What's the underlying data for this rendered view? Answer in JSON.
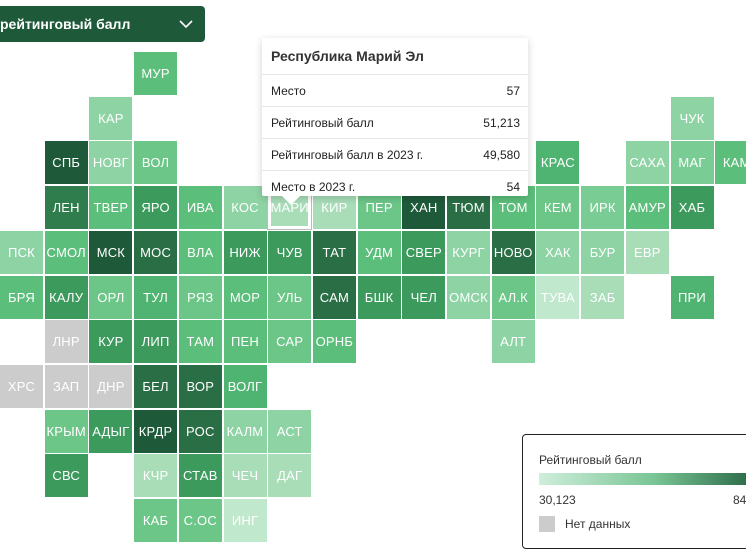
{
  "dropdown": {
    "label": "рейтинговый балл"
  },
  "tooltip": {
    "title": "Республика Марий Эл",
    "rows": [
      {
        "label": "Место",
        "value": "57"
      },
      {
        "label": "Рейтинговый балл",
        "value": "51,213"
      },
      {
        "label": "Рейтинговый балл в 2023 г.",
        "value": "49,580"
      },
      {
        "label": "Место в 2023 г.",
        "value": "54"
      }
    ]
  },
  "legend": {
    "title": "Рейтинговый балл",
    "min": "30,123",
    "max": "84",
    "no_data": "Нет данных",
    "colors": [
      "#cfeedb",
      "#79c595",
      "#1e5a3a"
    ]
  },
  "colors": {
    "no_data": "#cccccc",
    "accent": "#1e5a3a"
  },
  "regions": [
    {
      "label": "МУР",
      "col": 3,
      "row": 0,
      "color": "#5cbe7b"
    },
    {
      "label": "КАР",
      "col": 2,
      "row": 1,
      "color": "#8dd3a4"
    },
    {
      "label": "ЧУК",
      "col": 15,
      "row": 1,
      "color": "#8dd3a4"
    },
    {
      "label": "СПБ",
      "col": 1,
      "row": 2,
      "color": "#1e5a3a"
    },
    {
      "label": "НОВГ",
      "col": 2,
      "row": 2,
      "color": "#8dd3a4"
    },
    {
      "label": "ВОЛ",
      "col": 3,
      "row": 2,
      "color": "#6cc688"
    },
    {
      "label": "КРАС",
      "col": 12,
      "row": 2,
      "color": "#4fb471"
    },
    {
      "label": "САХА",
      "col": 14,
      "row": 2,
      "color": "#8dd3a4"
    },
    {
      "label": "МАГ",
      "col": 15,
      "row": 2,
      "color": "#79cc93"
    },
    {
      "label": "КАМ",
      "col": 16,
      "row": 2,
      "color": "#5cbe7b"
    },
    {
      "label": "ЛЕН",
      "col": 1,
      "row": 3,
      "color": "#2f7d4d"
    },
    {
      "label": "ТВЕР",
      "col": 2,
      "row": 3,
      "color": "#5cbe7b"
    },
    {
      "label": "ЯРО",
      "col": 3,
      "row": 3,
      "color": "#3c9a5d"
    },
    {
      "label": "ИВА",
      "col": 4,
      "row": 3,
      "color": "#5cbe7b"
    },
    {
      "label": "КОС",
      "col": 5,
      "row": 3,
      "color": "#8dd3a4"
    },
    {
      "label": "МАРИ",
      "col": 6,
      "row": 3,
      "color": "#a8ddb8",
      "selected": true
    },
    {
      "label": "КИР",
      "col": 7,
      "row": 3,
      "color": "#a8ddb8"
    },
    {
      "label": "ПЕР",
      "col": 8,
      "row": 3,
      "color": "#6cc688"
    },
    {
      "label": "ХАН",
      "col": 9,
      "row": 3,
      "color": "#1e5a3a"
    },
    {
      "label": "ТЮМ",
      "col": 10,
      "row": 3,
      "color": "#2a6e45"
    },
    {
      "label": "ТОМ",
      "col": 11,
      "row": 3,
      "color": "#5cbe7b"
    },
    {
      "label": "КЕМ",
      "col": 12,
      "row": 3,
      "color": "#6cc688"
    },
    {
      "label": "ИРК",
      "col": 13,
      "row": 3,
      "color": "#79cc93"
    },
    {
      "label": "АМУР",
      "col": 14,
      "row": 3,
      "color": "#5cbe7b"
    },
    {
      "label": "ХАБ",
      "col": 15,
      "row": 3,
      "color": "#3c9a5d"
    },
    {
      "label": "ПСК",
      "col": 0,
      "row": 4,
      "color": "#8dd3a4"
    },
    {
      "label": "СМОЛ",
      "col": 1,
      "row": 4,
      "color": "#5cbe7b"
    },
    {
      "label": "МСК",
      "col": 2,
      "row": 4,
      "color": "#1e5a3a"
    },
    {
      "label": "МОС",
      "col": 3,
      "row": 4,
      "color": "#2a6e45"
    },
    {
      "label": "ВЛА",
      "col": 4,
      "row": 4,
      "color": "#5cbe7b"
    },
    {
      "label": "НИЖ",
      "col": 5,
      "row": 4,
      "color": "#3c9a5d"
    },
    {
      "label": "ЧУВ",
      "col": 6,
      "row": 4,
      "color": "#3c9a5d"
    },
    {
      "label": "ТАТ",
      "col": 7,
      "row": 4,
      "color": "#2a6e45"
    },
    {
      "label": "УДМ",
      "col": 8,
      "row": 4,
      "color": "#5cbe7b"
    },
    {
      "label": "СВЕР",
      "col": 9,
      "row": 4,
      "color": "#3c9a5d"
    },
    {
      "label": "КУРГ",
      "col": 10,
      "row": 4,
      "color": "#8dd3a4"
    },
    {
      "label": "НОВО",
      "col": 11,
      "row": 4,
      "color": "#2a6e45"
    },
    {
      "label": "ХАК",
      "col": 12,
      "row": 4,
      "color": "#8dd3a4"
    },
    {
      "label": "БУР",
      "col": 13,
      "row": 4,
      "color": "#8dd3a4"
    },
    {
      "label": "ЕВР",
      "col": 14,
      "row": 4,
      "color": "#a8ddb8"
    },
    {
      "label": "БРЯ",
      "col": 0,
      "row": 5,
      "color": "#5cbe7b"
    },
    {
      "label": "КАЛУ",
      "col": 1,
      "row": 5,
      "color": "#3c9a5d"
    },
    {
      "label": "ОРЛ",
      "col": 2,
      "row": 5,
      "color": "#6cc688"
    },
    {
      "label": "ТУЛ",
      "col": 3,
      "row": 5,
      "color": "#4fb471"
    },
    {
      "label": "РЯЗ",
      "col": 4,
      "row": 5,
      "color": "#6cc688"
    },
    {
      "label": "МОР",
      "col": 5,
      "row": 5,
      "color": "#5cbe7b"
    },
    {
      "label": "УЛЬ",
      "col": 6,
      "row": 5,
      "color": "#6cc688"
    },
    {
      "label": "САМ",
      "col": 7,
      "row": 5,
      "color": "#2a6e45"
    },
    {
      "label": "БШК",
      "col": 8,
      "row": 5,
      "color": "#3c9a5d"
    },
    {
      "label": "ЧЕЛ",
      "col": 9,
      "row": 5,
      "color": "#3c9a5d"
    },
    {
      "label": "ОМСК",
      "col": 10,
      "row": 5,
      "color": "#8dd3a4"
    },
    {
      "label": "АЛ.К",
      "col": 11,
      "row": 5,
      "color": "#6cc688"
    },
    {
      "label": "ТУВА",
      "col": 12,
      "row": 5,
      "color": "#c0e8cd"
    },
    {
      "label": "ЗАБ",
      "col": 13,
      "row": 5,
      "color": "#a8ddb8"
    },
    {
      "label": "ПРИ",
      "col": 15,
      "row": 5,
      "color": "#4fb471"
    },
    {
      "label": "ЛНР",
      "col": 1,
      "row": 6,
      "color": "#cccccc"
    },
    {
      "label": "КУР",
      "col": 2,
      "row": 6,
      "color": "#3c9a5d"
    },
    {
      "label": "ЛИП",
      "col": 3,
      "row": 6,
      "color": "#3c9a5d"
    },
    {
      "label": "ТАМ",
      "col": 4,
      "row": 6,
      "color": "#5cbe7b"
    },
    {
      "label": "ПЕН",
      "col": 5,
      "row": 6,
      "color": "#5cbe7b"
    },
    {
      "label": "САР",
      "col": 6,
      "row": 6,
      "color": "#6cc688"
    },
    {
      "label": "ОРНБ",
      "col": 7,
      "row": 6,
      "color": "#5cbe7b"
    },
    {
      "label": "АЛТ",
      "col": 11,
      "row": 6,
      "color": "#8dd3a4"
    },
    {
      "label": "ХРС",
      "col": 0,
      "row": 7,
      "color": "#cccccc"
    },
    {
      "label": "ЗАП",
      "col": 1,
      "row": 7,
      "color": "#cccccc"
    },
    {
      "label": "ДНР",
      "col": 2,
      "row": 7,
      "color": "#cccccc"
    },
    {
      "label": "БЕЛ",
      "col": 3,
      "row": 7,
      "color": "#2a6e45"
    },
    {
      "label": "ВОР",
      "col": 4,
      "row": 7,
      "color": "#2a6e45"
    },
    {
      "label": "ВОЛГ",
      "col": 5,
      "row": 7,
      "color": "#4fb471"
    },
    {
      "label": "КРЫМ",
      "col": 1,
      "row": 8,
      "color": "#6cc688"
    },
    {
      "label": "АДЫГ",
      "col": 2,
      "row": 8,
      "color": "#3c9a5d"
    },
    {
      "label": "КРДР",
      "col": 3,
      "row": 8,
      "color": "#1e5a3a"
    },
    {
      "label": "РОС",
      "col": 4,
      "row": 8,
      "color": "#2a6e45"
    },
    {
      "label": "КАЛМ",
      "col": 5,
      "row": 8,
      "color": "#8dd3a4"
    },
    {
      "label": "АСТ",
      "col": 6,
      "row": 8,
      "color": "#8dd3a4"
    },
    {
      "label": "СВС",
      "col": 1,
      "row": 9,
      "color": "#3c9a5d"
    },
    {
      "label": "КЧР",
      "col": 3,
      "row": 9,
      "color": "#a8ddb8"
    },
    {
      "label": "СТАВ",
      "col": 4,
      "row": 9,
      "color": "#3c9a5d"
    },
    {
      "label": "ЧЕЧ",
      "col": 5,
      "row": 9,
      "color": "#a8ddb8"
    },
    {
      "label": "ДАГ",
      "col": 6,
      "row": 9,
      "color": "#a8ddb8"
    },
    {
      "label": "КАБ",
      "col": 3,
      "row": 10,
      "color": "#6cc688"
    },
    {
      "label": "С.ОС",
      "col": 4,
      "row": 10,
      "color": "#6cc688"
    },
    {
      "label": "ИНГ",
      "col": 5,
      "row": 10,
      "color": "#c0e8cd"
    }
  ]
}
